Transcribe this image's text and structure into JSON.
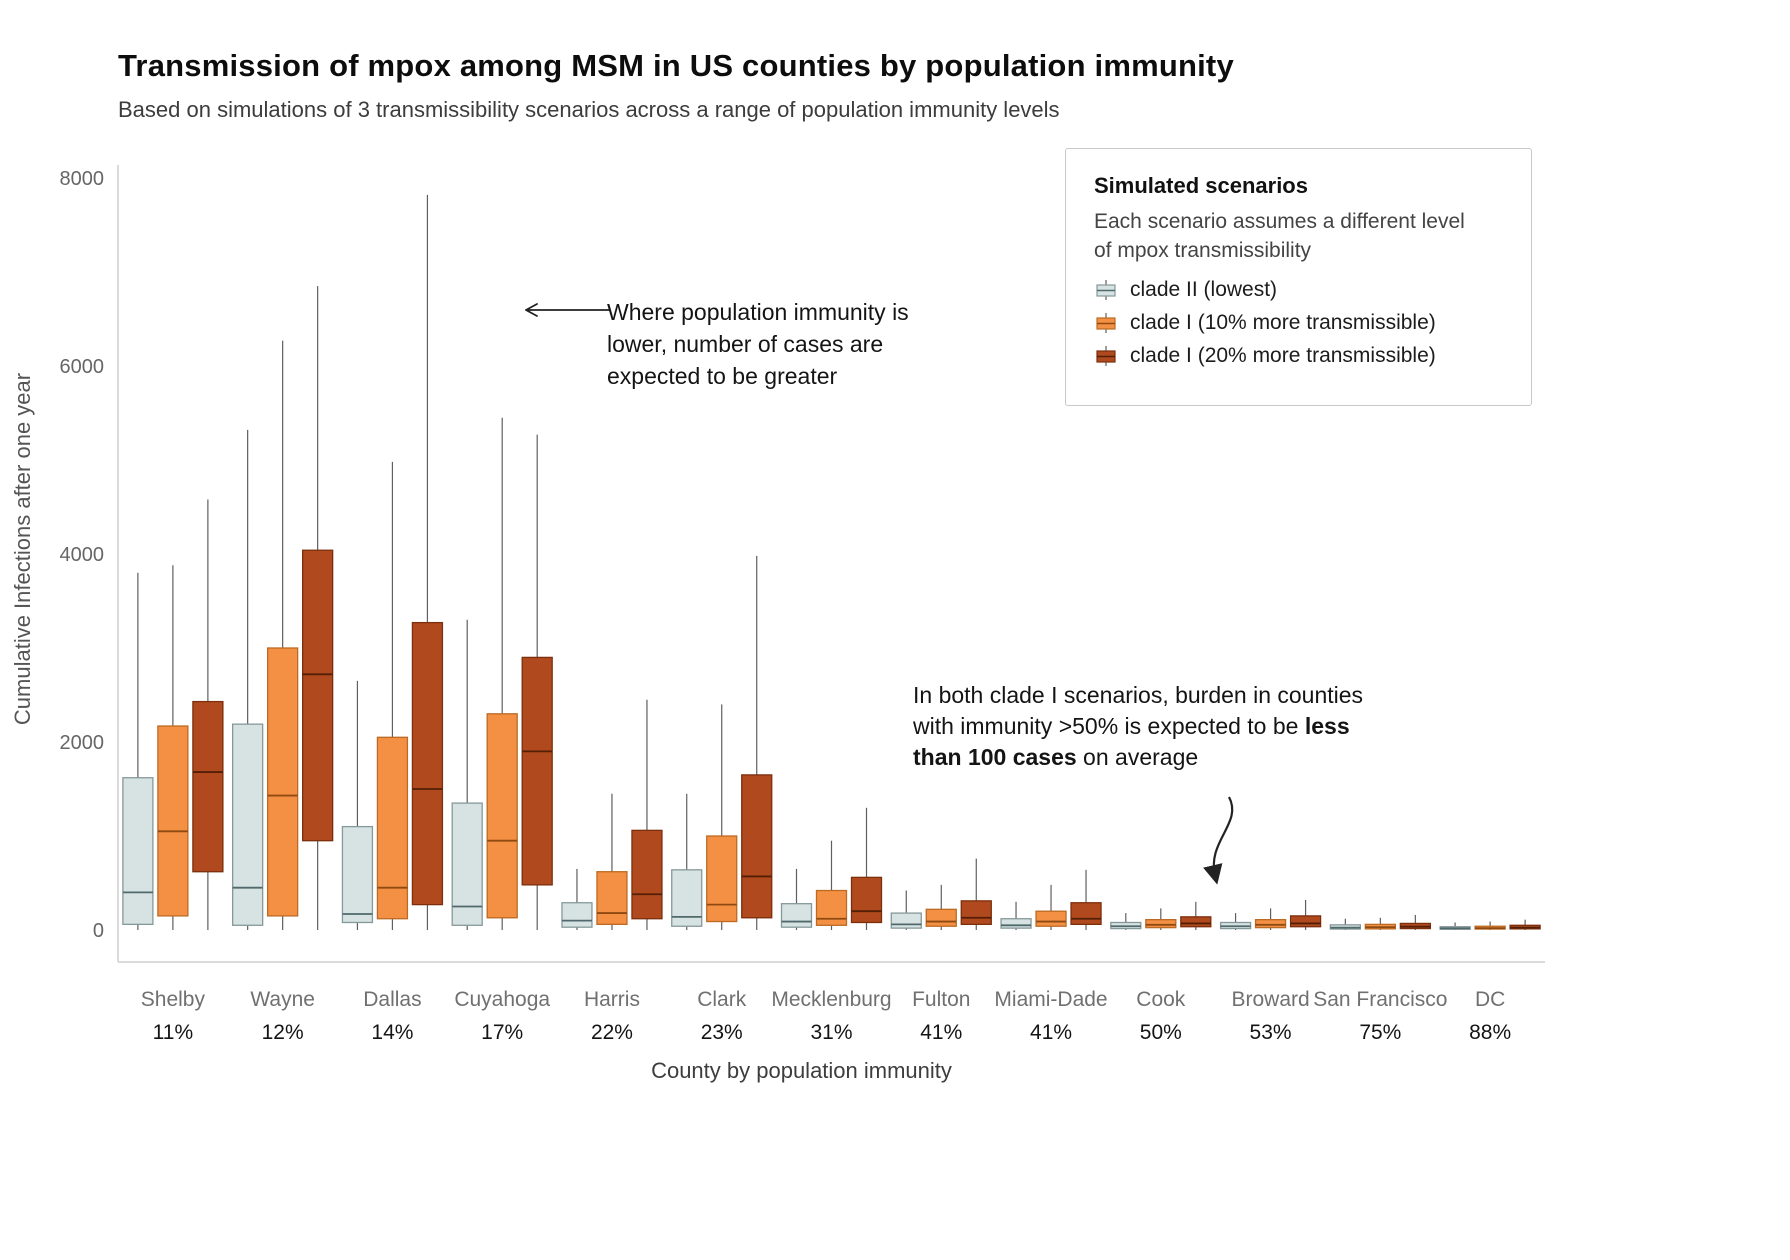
{
  "header": {
    "title": "Transmission of mpox among MSM in US counties by population immunity",
    "subtitle": "Based on simulations of 3 transmissibility scenarios across a range of population immunity levels"
  },
  "legend": {
    "title": "Simulated scenarios",
    "description": "Each scenario assumes a different level of mpox transmissibility",
    "items": [
      {
        "label": "clade II (lowest)"
      },
      {
        "label": "clade I (10% more transmissible)"
      },
      {
        "label": "clade I (20% more transmissible)"
      }
    ]
  },
  "annotations": {
    "low_immunity": {
      "text": "Where population immunity is lower, number of cases are expected to be greater"
    },
    "high_immunity": {
      "text_before": "In both clade I scenarios, burden in counties with immunity >50% is expected to be ",
      "text_bold": "less than 100 cases",
      "text_after": " on average"
    }
  },
  "chart_data": {
    "type": "boxplot",
    "title": "Transmission of mpox among MSM in US counties by population immunity",
    "subtitle": "Based on simulations of 3 transmissibility scenarios across a range of population immunity levels",
    "xlabel": "County by population immunity",
    "ylabel": "Cumulative Infections after one year",
    "ylim": [
      0,
      8000
    ],
    "yticks": [
      0,
      2000,
      4000,
      6000,
      8000
    ],
    "grid": false,
    "legend_position": "top-right inside",
    "box_values_order": "min, q1, median, q3, max",
    "categories": [
      {
        "county": "Shelby",
        "immunity": "11%"
      },
      {
        "county": "Wayne",
        "immunity": "12%"
      },
      {
        "county": "Dallas",
        "immunity": "14%"
      },
      {
        "county": "Cuyahoga",
        "immunity": "17%"
      },
      {
        "county": "Harris",
        "immunity": "22%"
      },
      {
        "county": "Clark",
        "immunity": "23%"
      },
      {
        "county": "Mecklenburg",
        "immunity": "31%"
      },
      {
        "county": "Fulton",
        "immunity": "41%"
      },
      {
        "county": "Miami-Dade",
        "immunity": "41%"
      },
      {
        "county": "Cook",
        "immunity": "50%"
      },
      {
        "county": "Broward",
        "immunity": "53%"
      },
      {
        "county": "San Francisco",
        "immunity": "75%"
      },
      {
        "county": "DC",
        "immunity": "88%"
      }
    ],
    "series": [
      {
        "name": "clade II (lowest)",
        "fill": "#d7e2e3",
        "stroke": "#86999a",
        "median_color": "#50696b",
        "boxes": [
          [
            0,
            60,
            400,
            1620,
            3800
          ],
          [
            0,
            50,
            450,
            2190,
            5320
          ],
          [
            0,
            80,
            170,
            1100,
            2650
          ],
          [
            0,
            50,
            250,
            1350,
            3300
          ],
          [
            0,
            30,
            100,
            290,
            650
          ],
          [
            0,
            40,
            140,
            640,
            1450
          ],
          [
            0,
            30,
            90,
            280,
            650
          ],
          [
            0,
            20,
            60,
            180,
            420
          ],
          [
            0,
            20,
            50,
            120,
            300
          ],
          [
            0,
            15,
            40,
            80,
            180
          ],
          [
            0,
            15,
            40,
            80,
            180
          ],
          [
            0,
            10,
            25,
            55,
            120
          ],
          [
            0,
            8,
            18,
            35,
            80
          ]
        ]
      },
      {
        "name": "clade I (10% more transmissible)",
        "fill": "#f49044",
        "stroke": "#bc6a24",
        "median_color": "#8f4a12",
        "boxes": [
          [
            0,
            150,
            1050,
            2170,
            3880
          ],
          [
            0,
            150,
            1430,
            3000,
            6270
          ],
          [
            0,
            120,
            450,
            2050,
            4980
          ],
          [
            0,
            130,
            950,
            2300,
            5450
          ],
          [
            0,
            60,
            180,
            620,
            1450
          ],
          [
            0,
            90,
            270,
            1000,
            2400
          ],
          [
            0,
            50,
            120,
            420,
            950
          ],
          [
            0,
            40,
            90,
            220,
            480
          ],
          [
            0,
            40,
            90,
            200,
            480
          ],
          [
            0,
            25,
            55,
            110,
            230
          ],
          [
            0,
            25,
            55,
            110,
            230
          ],
          [
            0,
            12,
            30,
            60,
            130
          ],
          [
            0,
            10,
            20,
            40,
            90
          ]
        ]
      },
      {
        "name": "clade I (20% more transmissible)",
        "fill": "#b04a1e",
        "stroke": "#7c2f0d",
        "median_color": "#531f07",
        "boxes": [
          [
            0,
            620,
            1680,
            2430,
            4580
          ],
          [
            0,
            950,
            2720,
            4040,
            6850
          ],
          [
            0,
            270,
            1500,
            3270,
            7820
          ],
          [
            0,
            480,
            1900,
            2900,
            5270
          ],
          [
            0,
            120,
            380,
            1060,
            2450
          ],
          [
            0,
            130,
            570,
            1650,
            3980
          ],
          [
            0,
            80,
            200,
            560,
            1300
          ],
          [
            0,
            60,
            130,
            310,
            760
          ],
          [
            0,
            60,
            120,
            290,
            640
          ],
          [
            0,
            35,
            70,
            140,
            300
          ],
          [
            0,
            35,
            70,
            150,
            320
          ],
          [
            0,
            15,
            35,
            70,
            160
          ],
          [
            0,
            12,
            25,
            50,
            110
          ]
        ]
      }
    ],
    "annotations": [
      "Where population immunity is lower, number of cases are expected to be greater",
      "In both clade I scenarios, burden in counties with immunity >50% is expected to be less than 100 cases on average"
    ]
  }
}
